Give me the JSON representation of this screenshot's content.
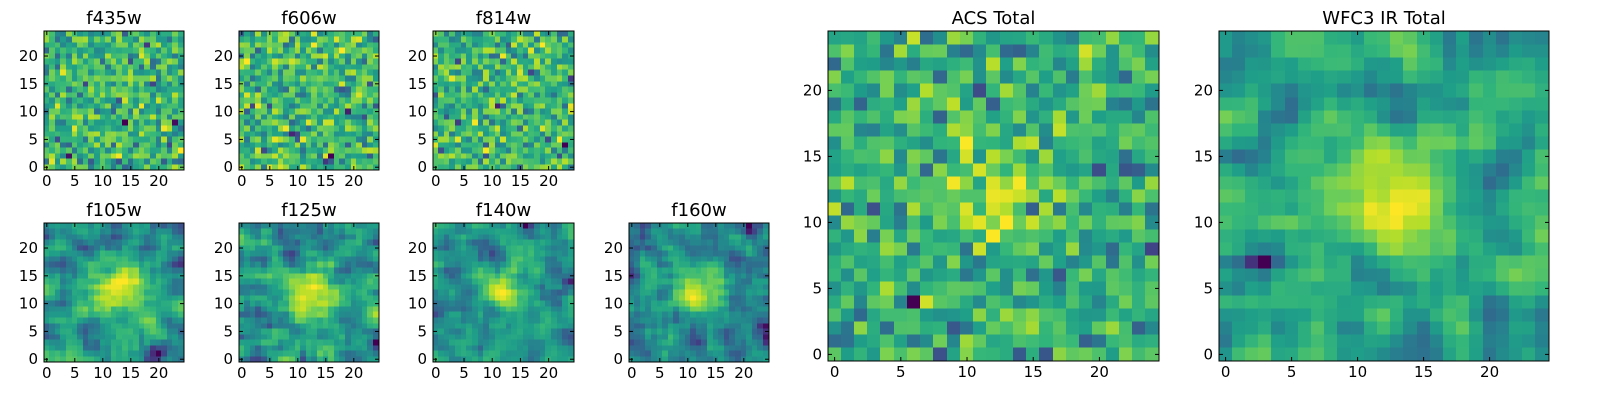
{
  "chart_data": [
    {
      "type": "heatmap",
      "title": "f435w",
      "colormap": "viridis",
      "grid": false,
      "xlim": [
        0,
        24
      ],
      "ylim": [
        0,
        24
      ],
      "x_ticks": [
        0,
        5,
        10,
        15,
        20
      ],
      "y_ticks": [
        0,
        5,
        10,
        15,
        20
      ],
      "smoothness": 0,
      "has_center_source": false
    },
    {
      "type": "heatmap",
      "title": "f606w",
      "colormap": "viridis",
      "grid": false,
      "xlim": [
        0,
        24
      ],
      "ylim": [
        0,
        24
      ],
      "x_ticks": [
        0,
        5,
        10,
        15,
        20
      ],
      "y_ticks": [
        0,
        5,
        10,
        15,
        20
      ],
      "smoothness": 0,
      "has_center_source": false
    },
    {
      "type": "heatmap",
      "title": "f814w",
      "colormap": "viridis",
      "grid": false,
      "xlim": [
        0,
        24
      ],
      "ylim": [
        0,
        24
      ],
      "x_ticks": [
        0,
        5,
        10,
        15,
        20
      ],
      "y_ticks": [
        0,
        5,
        10,
        15,
        20
      ],
      "smoothness": 0,
      "has_center_source": false
    },
    {
      "type": "heatmap",
      "title": "f105w",
      "colormap": "viridis",
      "grid": false,
      "xlim": [
        0,
        24
      ],
      "ylim": [
        0,
        24
      ],
      "x_ticks": [
        0,
        5,
        10,
        15,
        20
      ],
      "y_ticks": [
        0,
        5,
        10,
        15,
        20
      ],
      "smoothness": 1,
      "has_center_source": true
    },
    {
      "type": "heatmap",
      "title": "f125w",
      "colormap": "viridis",
      "grid": false,
      "xlim": [
        0,
        24
      ],
      "ylim": [
        0,
        24
      ],
      "x_ticks": [
        0,
        5,
        10,
        15,
        20
      ],
      "y_ticks": [
        0,
        5,
        10,
        15,
        20
      ],
      "smoothness": 1,
      "has_center_source": true
    },
    {
      "type": "heatmap",
      "title": "f140w",
      "colormap": "viridis",
      "grid": false,
      "xlim": [
        0,
        24
      ],
      "ylim": [
        0,
        24
      ],
      "x_ticks": [
        0,
        5,
        10,
        15,
        20
      ],
      "y_ticks": [
        0,
        5,
        10,
        15,
        20
      ],
      "smoothness": 1,
      "has_center_source": true
    },
    {
      "type": "heatmap",
      "title": "f160w",
      "colormap": "viridis",
      "grid": false,
      "xlim": [
        0,
        24
      ],
      "ylim": [
        0,
        24
      ],
      "x_ticks": [
        0,
        5,
        10,
        15,
        20
      ],
      "y_ticks": [
        0,
        5,
        10,
        15,
        20
      ],
      "smoothness": 1,
      "has_center_source": true
    },
    {
      "type": "heatmap",
      "title": "ACS Total",
      "colormap": "viridis",
      "grid": false,
      "xlim": [
        0,
        24
      ],
      "ylim": [
        0,
        24
      ],
      "x_ticks": [
        0,
        5,
        10,
        15,
        20
      ],
      "y_ticks": [
        0,
        5,
        10,
        15,
        20
      ],
      "smoothness": 0,
      "has_center_source": true
    },
    {
      "type": "heatmap",
      "title": "WFC3 IR Total",
      "colormap": "viridis",
      "grid": false,
      "xlim": [
        0,
        24
      ],
      "ylim": [
        0,
        24
      ],
      "x_ticks": [
        0,
        5,
        10,
        15,
        20
      ],
      "y_ticks": [
        0,
        5,
        10,
        15,
        20
      ],
      "smoothness": 1,
      "has_center_source": true
    }
  ]
}
